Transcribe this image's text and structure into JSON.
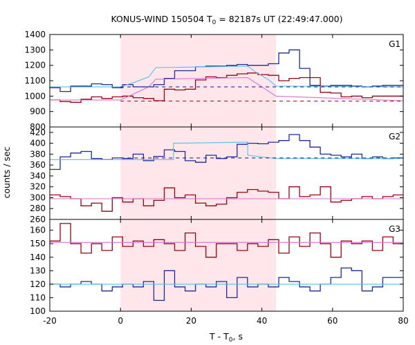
{
  "chart_data": {
    "type": "line",
    "title_main": "KONUS-WIND 150504 T",
    "title_sub": "0",
    "title_rest": " = 82187s UT (22:49:47.000)",
    "xlabel_main": "T - T",
    "xlabel_sub": "0",
    "xlabel_rest": ", s",
    "ylabel": "counts / sec",
    "xlim": [
      -20,
      80
    ],
    "xticks": [
      -20,
      0,
      20,
      40,
      60,
      80
    ],
    "highlight": {
      "start": 0,
      "end": 44
    },
    "colors": {
      "blue": "#1a2a9a",
      "red": "#9a0010",
      "cyan": "#56bfe8",
      "pink": "#dd6fd2",
      "highlight": "#ffe6ea"
    },
    "panels": [
      {
        "label": "G1",
        "ylim": [
          800,
          1400
        ],
        "yticks": [
          800,
          900,
          1000,
          1100,
          1200,
          1300,
          1400
        ],
        "bin_width": 2.944,
        "series": [
          {
            "color": "blue",
            "style": "step",
            "values": [
              1055,
              1030,
              1065,
              1065,
              1080,
              1075,
              1055,
              1075,
              1060,
              1060,
              1075,
              1115,
              1165,
              1165,
              1190,
              1195,
              1195,
              1200,
              1205,
              1200,
              1200,
              1210,
              1280,
              1300,
              1180,
              1070,
              1065,
              1070,
              1070,
              1065,
              1060,
              1065,
              1070,
              1070,
              1070,
              1045,
              1050,
              1055,
              1065,
              1050,
              1060,
              1045,
              1045,
              1065,
              1045,
              1055,
              1065,
              1055,
              1060,
              1050,
              1060,
              1050
            ]
          },
          {
            "color": "red",
            "style": "step",
            "values": [
              975,
              965,
              960,
              980,
              995,
              985,
              995,
              1000,
              990,
              985,
              970,
              1045,
              1040,
              1045,
              1105,
              1125,
              1120,
              1135,
              1145,
              1150,
              1140,
              1135,
              1100,
              1115,
              1120,
              1120,
              1025,
              1020,
              995,
              1000,
              990,
              1000,
              1000,
              1000,
              985,
              975,
              980,
              960,
              985,
              955,
              950,
              950,
              950,
              960,
              960,
              965,
              960,
              965,
              955,
              960,
              960,
              960
            ]
          },
          {
            "color": "cyan",
            "style": "line",
            "points": [
              [
                -20,
                1060
              ],
              [
                0,
                1060
              ],
              [
                4,
                1090
              ],
              [
                8,
                1125
              ],
              [
                10,
                1185
              ],
              [
                36,
                1195
              ],
              [
                38,
                1160
              ],
              [
                42,
                1105
              ],
              [
                44,
                1065
              ],
              [
                80,
                1060
              ]
            ]
          },
          {
            "color": "pink",
            "style": "line",
            "points": [
              [
                -20,
                975
              ],
              [
                0,
                975
              ],
              [
                8,
                1060
              ],
              [
                10,
                1110
              ],
              [
                36,
                1120
              ],
              [
                40,
                1060
              ],
              [
                44,
                1000
              ],
              [
                80,
                970
              ]
            ]
          },
          {
            "color": "blue",
            "style": "dashed",
            "points": [
              [
                0,
                1060
              ],
              [
                80,
                1060
              ]
            ]
          },
          {
            "color": "red",
            "style": "dashed",
            "points": [
              [
                0,
                968
              ],
              [
                80,
                968
              ]
            ]
          }
        ]
      },
      {
        "label": "G2",
        "ylim": [
          260,
          430
        ],
        "yticks": [
          260,
          280,
          300,
          320,
          340,
          360,
          380,
          400,
          420
        ],
        "bin_width": 2.944,
        "series": [
          {
            "color": "blue",
            "style": "step",
            "values": [
              352,
              375,
              382,
              385,
              372,
              370,
              373,
              372,
              380,
              368,
              376,
              388,
              385,
              368,
              365,
              378,
              372,
              375,
              398,
              400,
              399,
              402,
              405,
              416,
              405,
              393,
              380,
              378,
              375,
              380,
              372,
              375,
              372,
              373,
              375,
              372,
              376,
              370,
              380,
              372,
              375,
              375,
              368,
              372,
              375,
              375,
              372,
              375,
              370,
              375,
              372,
              370
            ]
          },
          {
            "color": "red",
            "style": "step",
            "values": [
              305,
              302,
              298,
              285,
              290,
              275,
              300,
              292,
              298,
              285,
              295,
              318,
              300,
              305,
              290,
              285,
              288,
              300,
              310,
              315,
              312,
              310,
              298,
              320,
              302,
              305,
              320,
              292,
              295,
              298,
              302,
              298,
              302,
              305,
              298,
              285,
              300,
              295,
              290,
              290,
              310,
              300,
              312,
              295,
              300,
              290,
              288,
              292,
              298,
              295,
              300,
              285
            ]
          },
          {
            "color": "cyan",
            "style": "line",
            "points": [
              [
                -20,
                370
              ],
              [
                15,
                370
              ],
              [
                15,
                400
              ],
              [
                36,
                402
              ],
              [
                36,
                378
              ],
              [
                44,
                372
              ],
              [
                80,
                372
              ]
            ]
          },
          {
            "color": "pink",
            "style": "line",
            "points": [
              [
                -20,
                298
              ],
              [
                80,
                298
              ]
            ]
          },
          {
            "color": "blue",
            "style": "dashed",
            "points": [
              [
                0,
                373
              ],
              [
                80,
                373
              ]
            ]
          }
        ]
      },
      {
        "label": "G3",
        "ylim": [
          100,
          168
        ],
        "yticks": [
          100,
          110,
          120,
          130,
          140,
          150,
          160
        ],
        "bin_width": 2.944,
        "series": [
          {
            "color": "red",
            "style": "step",
            "values": [
              152,
              165,
              150,
              143,
              150,
              145,
              155,
              148,
              152,
              148,
              153,
              150,
              145,
              158,
              148,
              140,
              150,
              150,
              145,
              150,
              148,
              153,
              143,
              155,
              148,
              158,
              150,
              140,
              152,
              150,
              152,
              145,
              155,
              150,
              148,
              152,
              150,
              150,
              150,
              148,
              150,
              145,
              138,
              150,
              152,
              148,
              150,
              150,
              148,
              155,
              150,
              150
            ]
          },
          {
            "color": "blue",
            "style": "step",
            "values": [
              120,
              118,
              120,
              122,
              120,
              115,
              118,
              120,
              118,
              122,
              108,
              130,
              118,
              115,
              120,
              118,
              122,
              110,
              125,
              118,
              120,
              118,
              125,
              122,
              118,
              115,
              120,
              125,
              132,
              130,
              115,
              118,
              125,
              125,
              127,
              125,
              120,
              108,
              133,
              122,
              120,
              118,
              118,
              120,
              110,
              118,
              120,
              118,
              122,
              118,
              120,
              118
            ]
          },
          {
            "color": "cyan",
            "style": "line",
            "points": [
              [
                -20,
                120
              ],
              [
                80,
                120
              ]
            ]
          },
          {
            "color": "pink",
            "style": "line",
            "points": [
              [
                -20,
                151
              ],
              [
                80,
                151
              ]
            ]
          }
        ]
      }
    ]
  }
}
